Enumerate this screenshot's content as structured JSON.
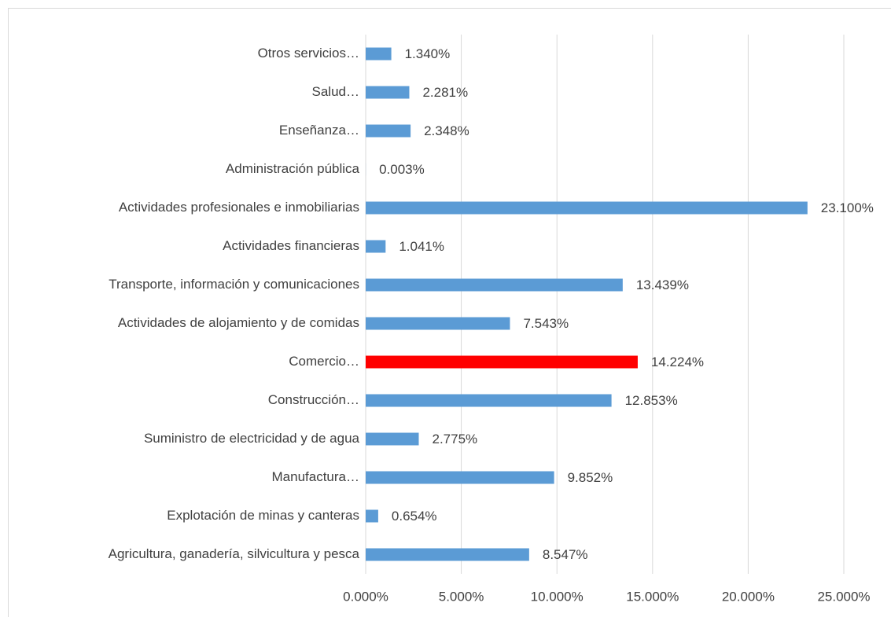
{
  "chart_data": {
    "type": "barh",
    "categories": [
      "Otros servicios…",
      "Salud…",
      "Enseñanza…",
      "Administración pública",
      "Actividades profesionales e inmobiliarias",
      "Actividades financieras",
      "Transporte, información y comunicaciones",
      "Actividades de alojamiento y de comidas",
      "Comercio…",
      "Construcción…",
      "Suministro de electricidad y de agua",
      "Manufactura…",
      "Explotación de minas y canteras",
      "Agricultura, ganadería, silvicultura y pesca"
    ],
    "values": [
      1.34,
      2.281,
      2.348,
      0.003,
      23.1,
      1.041,
      13.439,
      7.543,
      14.224,
      12.853,
      2.775,
      9.852,
      0.654,
      8.547
    ],
    "value_labels": [
      "1.340%",
      "2.281%",
      "2.348%",
      "0.003%",
      "23.100%",
      "1.041%",
      "13.439%",
      "7.543%",
      "14.224%",
      "12.853%",
      "2.775%",
      "9.852%",
      "0.654%",
      "8.547%"
    ],
    "colors": [
      "#5b9bd5",
      "#5b9bd5",
      "#5b9bd5",
      "#5b9bd5",
      "#5b9bd5",
      "#5b9bd5",
      "#5b9bd5",
      "#5b9bd5",
      "#ff0000",
      "#5b9bd5",
      "#5b9bd5",
      "#5b9bd5",
      "#5b9bd5",
      "#5b9bd5"
    ],
    "xlim": [
      0,
      25
    ],
    "xticks": [
      {
        "value": 0,
        "label": "0.000%"
      },
      {
        "value": 5,
        "label": "5.000%"
      },
      {
        "value": 10,
        "label": "10.000%"
      },
      {
        "value": 15,
        "label": "15.000%"
      },
      {
        "value": 20,
        "label": "20.000%"
      },
      {
        "value": 25,
        "label": "25.000%"
      }
    ],
    "grid": true
  }
}
